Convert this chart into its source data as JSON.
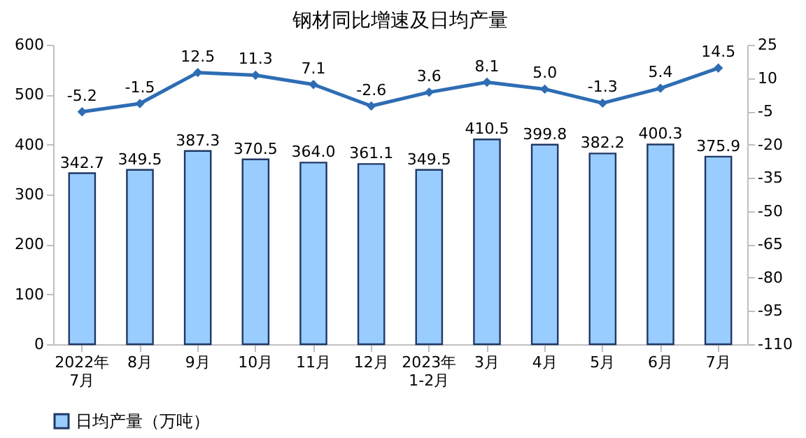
{
  "chart_data": {
    "type": "bar",
    "title": "钢材同比增速及日均产量",
    "categories": [
      "2022年\n7月",
      "8月",
      "9月",
      "10月",
      "11月",
      "12月",
      "2023年\n1-2月",
      "3月",
      "4月",
      "5月",
      "6月",
      "7月"
    ],
    "series": [
      {
        "name": "日均产量（万吨）",
        "color": "#99ccff",
        "values": [
          342.7,
          349.5,
          387.3,
          370.5,
          364.0,
          361.1,
          349.5,
          410.5,
          399.8,
          382.2,
          400.3,
          375.9
        ],
        "value_labels": [
          "342.7",
          "349.5",
          "387.3",
          "370.5",
          "364.0",
          "361.1",
          "349.5",
          "410.5",
          "399.8",
          "382.2",
          "400.3",
          "375.9"
        ]
      },
      {
        "type": "line",
        "axis": "y2",
        "color": "#2e6db4",
        "values": [
          -5.2,
          -1.5,
          12.5,
          11.3,
          7.1,
          -2.6,
          3.6,
          8.1,
          5.0,
          -1.3,
          5.4,
          14.5
        ],
        "value_labels": [
          "-5.2",
          "-1.5",
          "12.5",
          "11.3",
          "7.1",
          "-2.6",
          "3.6",
          "8.1",
          "5.0",
          "-1.3",
          "5.4",
          "14.5"
        ]
      }
    ],
    "ylim": [
      0,
      600
    ],
    "yticks": [
      0,
      100,
      200,
      300,
      400,
      500,
      600
    ],
    "y2lim": [
      -110,
      25
    ],
    "y2ticks": [
      -110,
      -95,
      -80,
      -65,
      -50,
      -35,
      -20,
      -5,
      10,
      25
    ],
    "marker": "diamond",
    "line_style": "solid",
    "grid": false,
    "legend": "bottom"
  }
}
